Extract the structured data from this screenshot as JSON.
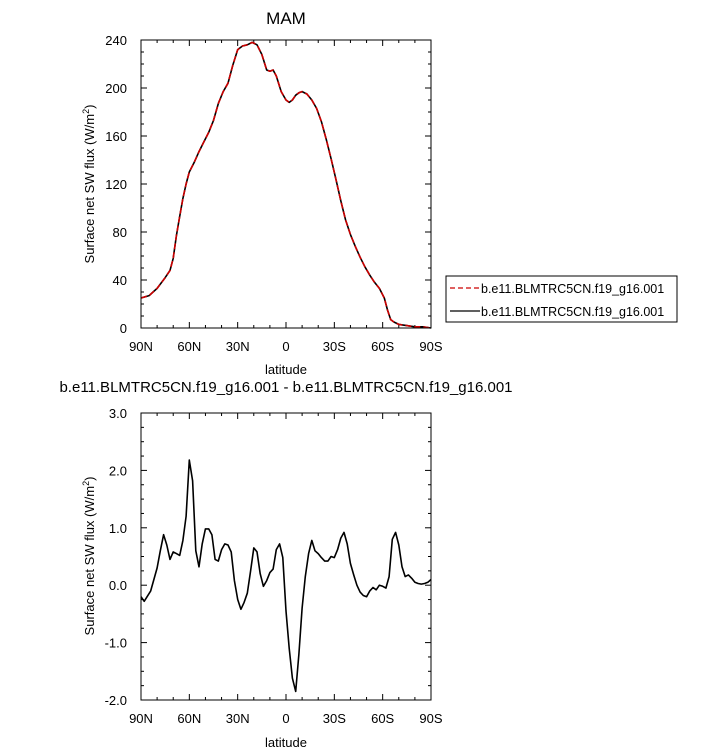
{
  "chart_data": [
    {
      "type": "line",
      "title": "MAM",
      "xlabel": "latitude",
      "ylabel": "Surface net SW flux (W/m",
      "ylabel_sup": "2",
      "ylabel_close": ")",
      "xlim": [
        90,
        -90
      ],
      "ylim": [
        0,
        240
      ],
      "xticks": [
        {
          "v": 90,
          "label": "90N"
        },
        {
          "v": 60,
          "label": "60N"
        },
        {
          "v": 30,
          "label": "30N"
        },
        {
          "v": 0,
          "label": "0"
        },
        {
          "v": -30,
          "label": "30S"
        },
        {
          "v": -60,
          "label": "60S"
        },
        {
          "v": -90,
          "label": "90S"
        }
      ],
      "yticks": [
        {
          "v": 0,
          "label": "0"
        },
        {
          "v": 40,
          "label": "40"
        },
        {
          "v": 80,
          "label": "80"
        },
        {
          "v": 120,
          "label": "120"
        },
        {
          "v": 160,
          "label": "160"
        },
        {
          "v": 200,
          "label": "200"
        },
        {
          "v": 240,
          "label": "240"
        }
      ],
      "legend": {
        "placement": "right",
        "entries": [
          "b.e11.BLMTRC5CN.f19_g16.001",
          "b.e11.BLMTRC5CN.f19_g16.001"
        ]
      },
      "series": [
        {
          "name": "b.e11.BLMTRC5CN.f19_g16.001",
          "color": "#cc0000",
          "dash": "dashed",
          "x": [
            90,
            85,
            80,
            75,
            72,
            70,
            68,
            66,
            64,
            62,
            60,
            57,
            54,
            51,
            48,
            45,
            42,
            39,
            36,
            33,
            30,
            27,
            24,
            21,
            18,
            15,
            12,
            10,
            8,
            6,
            3,
            0,
            -2,
            -4,
            -6,
            -8,
            -10,
            -13,
            -16,
            -19,
            -22,
            -25,
            -28,
            -31,
            -34,
            -37,
            -40,
            -43,
            -46,
            -49,
            -52,
            -55,
            -58,
            -61,
            -63,
            -65,
            -67,
            -70,
            -75,
            -80,
            -85,
            -90
          ],
          "y": [
            25,
            27,
            33,
            42,
            48,
            58,
            77,
            93,
            108,
            120,
            130,
            138,
            147,
            155,
            163,
            173,
            187,
            197,
            204,
            219,
            232,
            235,
            236,
            238,
            236,
            228,
            215,
            214,
            215,
            210,
            197,
            190,
            188,
            190,
            194,
            196,
            197,
            195,
            190,
            183,
            172,
            157,
            141,
            124,
            106,
            90,
            78,
            68,
            59,
            51,
            44,
            38,
            33,
            25,
            15,
            7,
            5,
            3,
            2,
            1,
            1,
            0
          ]
        },
        {
          "name": "b.e11.BLMTRC5CN.f19_g16.001",
          "color": "#000000",
          "dash": "solid",
          "x": [
            90,
            85,
            80,
            75,
            72,
            70,
            68,
            66,
            64,
            62,
            60,
            57,
            54,
            51,
            48,
            45,
            42,
            39,
            36,
            33,
            30,
            27,
            24,
            21,
            18,
            15,
            12,
            10,
            8,
            6,
            3,
            0,
            -2,
            -4,
            -6,
            -8,
            -10,
            -13,
            -16,
            -19,
            -22,
            -25,
            -28,
            -31,
            -34,
            -37,
            -40,
            -43,
            -46,
            -49,
            -52,
            -55,
            -58,
            -61,
            -63,
            -65,
            -67,
            -70,
            -75,
            -80,
            -85,
            -90
          ],
          "y": [
            25,
            27,
            33,
            42,
            48,
            58,
            77,
            93,
            108,
            120,
            130,
            138,
            147,
            155,
            163,
            173,
            187,
            197,
            204,
            219,
            232,
            235,
            236,
            238,
            236,
            228,
            215,
            214,
            215,
            210,
            197,
            190,
            188,
            190,
            194,
            196,
            197,
            195,
            190,
            183,
            172,
            157,
            141,
            124,
            106,
            90,
            78,
            68,
            59,
            51,
            44,
            38,
            33,
            25,
            15,
            7,
            5,
            3,
            2,
            1,
            1,
            0
          ]
        }
      ]
    },
    {
      "type": "line",
      "title": "b.e11.BLMTRC5CN.f19_g16.001 - b.e11.BLMTRC5CN.f19_g16.001",
      "xlabel": "latitude",
      "ylabel": "Surface net SW flux (W/m",
      "ylabel_sup": "2",
      "ylabel_close": ")",
      "xlim": [
        90,
        -90
      ],
      "ylim": [
        -2.0,
        3.0
      ],
      "xticks": [
        {
          "v": 90,
          "label": "90N"
        },
        {
          "v": 60,
          "label": "60N"
        },
        {
          "v": 30,
          "label": "30N"
        },
        {
          "v": 0,
          "label": "0"
        },
        {
          "v": -30,
          "label": "30S"
        },
        {
          "v": -60,
          "label": "60S"
        },
        {
          "v": -90,
          "label": "90S"
        }
      ],
      "yticks": [
        {
          "v": -2.0,
          "label": "-2.0"
        },
        {
          "v": -1.0,
          "label": "-1.0"
        },
        {
          "v": 0.0,
          "label": "0.0"
        },
        {
          "v": 1.0,
          "label": "1.0"
        },
        {
          "v": 2.0,
          "label": "2.0"
        },
        {
          "v": 3.0,
          "label": "3.0"
        }
      ],
      "series": [
        {
          "color": "#000000",
          "dash": "solid",
          "x": [
            90,
            88,
            84,
            80,
            78,
            76,
            74,
            72,
            70,
            68,
            66,
            64,
            62,
            60,
            58,
            56,
            54,
            52,
            50,
            48,
            46,
            44,
            42,
            40,
            38,
            36,
            34,
            32,
            30,
            28,
            26,
            24,
            22,
            20,
            18,
            16,
            14,
            12,
            10,
            8,
            6,
            4,
            2,
            0,
            -2,
            -4,
            -6,
            -8,
            -10,
            -12,
            -14,
            -16,
            -18,
            -20,
            -22,
            -24,
            -26,
            -28,
            -30,
            -32,
            -34,
            -36,
            -38,
            -40,
            -42,
            -44,
            -46,
            -48,
            -50,
            -52,
            -54,
            -56,
            -58,
            -60,
            -62,
            -64,
            -66,
            -68,
            -70,
            -72,
            -74,
            -76,
            -78,
            -80,
            -82,
            -84,
            -86,
            -88,
            -90
          ],
          "y": [
            -0.2,
            -0.28,
            -0.1,
            0.3,
            0.6,
            0.88,
            0.7,
            0.45,
            0.58,
            0.55,
            0.52,
            0.78,
            1.2,
            2.18,
            1.82,
            0.6,
            0.32,
            0.72,
            0.98,
            0.98,
            0.88,
            0.45,
            0.42,
            0.62,
            0.72,
            0.7,
            0.58,
            0.08,
            -0.25,
            -0.42,
            -0.3,
            -0.14,
            0.25,
            0.65,
            0.58,
            0.2,
            -0.02,
            0.08,
            0.22,
            0.28,
            0.62,
            0.72,
            0.48,
            -0.45,
            -1.1,
            -1.62,
            -1.85,
            -1.2,
            -0.4,
            0.15,
            0.55,
            0.78,
            0.6,
            0.55,
            0.48,
            0.42,
            0.42,
            0.5,
            0.48,
            0.62,
            0.82,
            0.92,
            0.72,
            0.38,
            0.18,
            0.0,
            -0.12,
            -0.18,
            -0.2,
            -0.1,
            -0.04,
            -0.08,
            0.0,
            -0.02,
            -0.05,
            0.15,
            0.8,
            0.92,
            0.7,
            0.32,
            0.15,
            0.18,
            0.12,
            0.05,
            0.03,
            0.02,
            0.03,
            0.05,
            0.1
          ]
        }
      ]
    }
  ]
}
